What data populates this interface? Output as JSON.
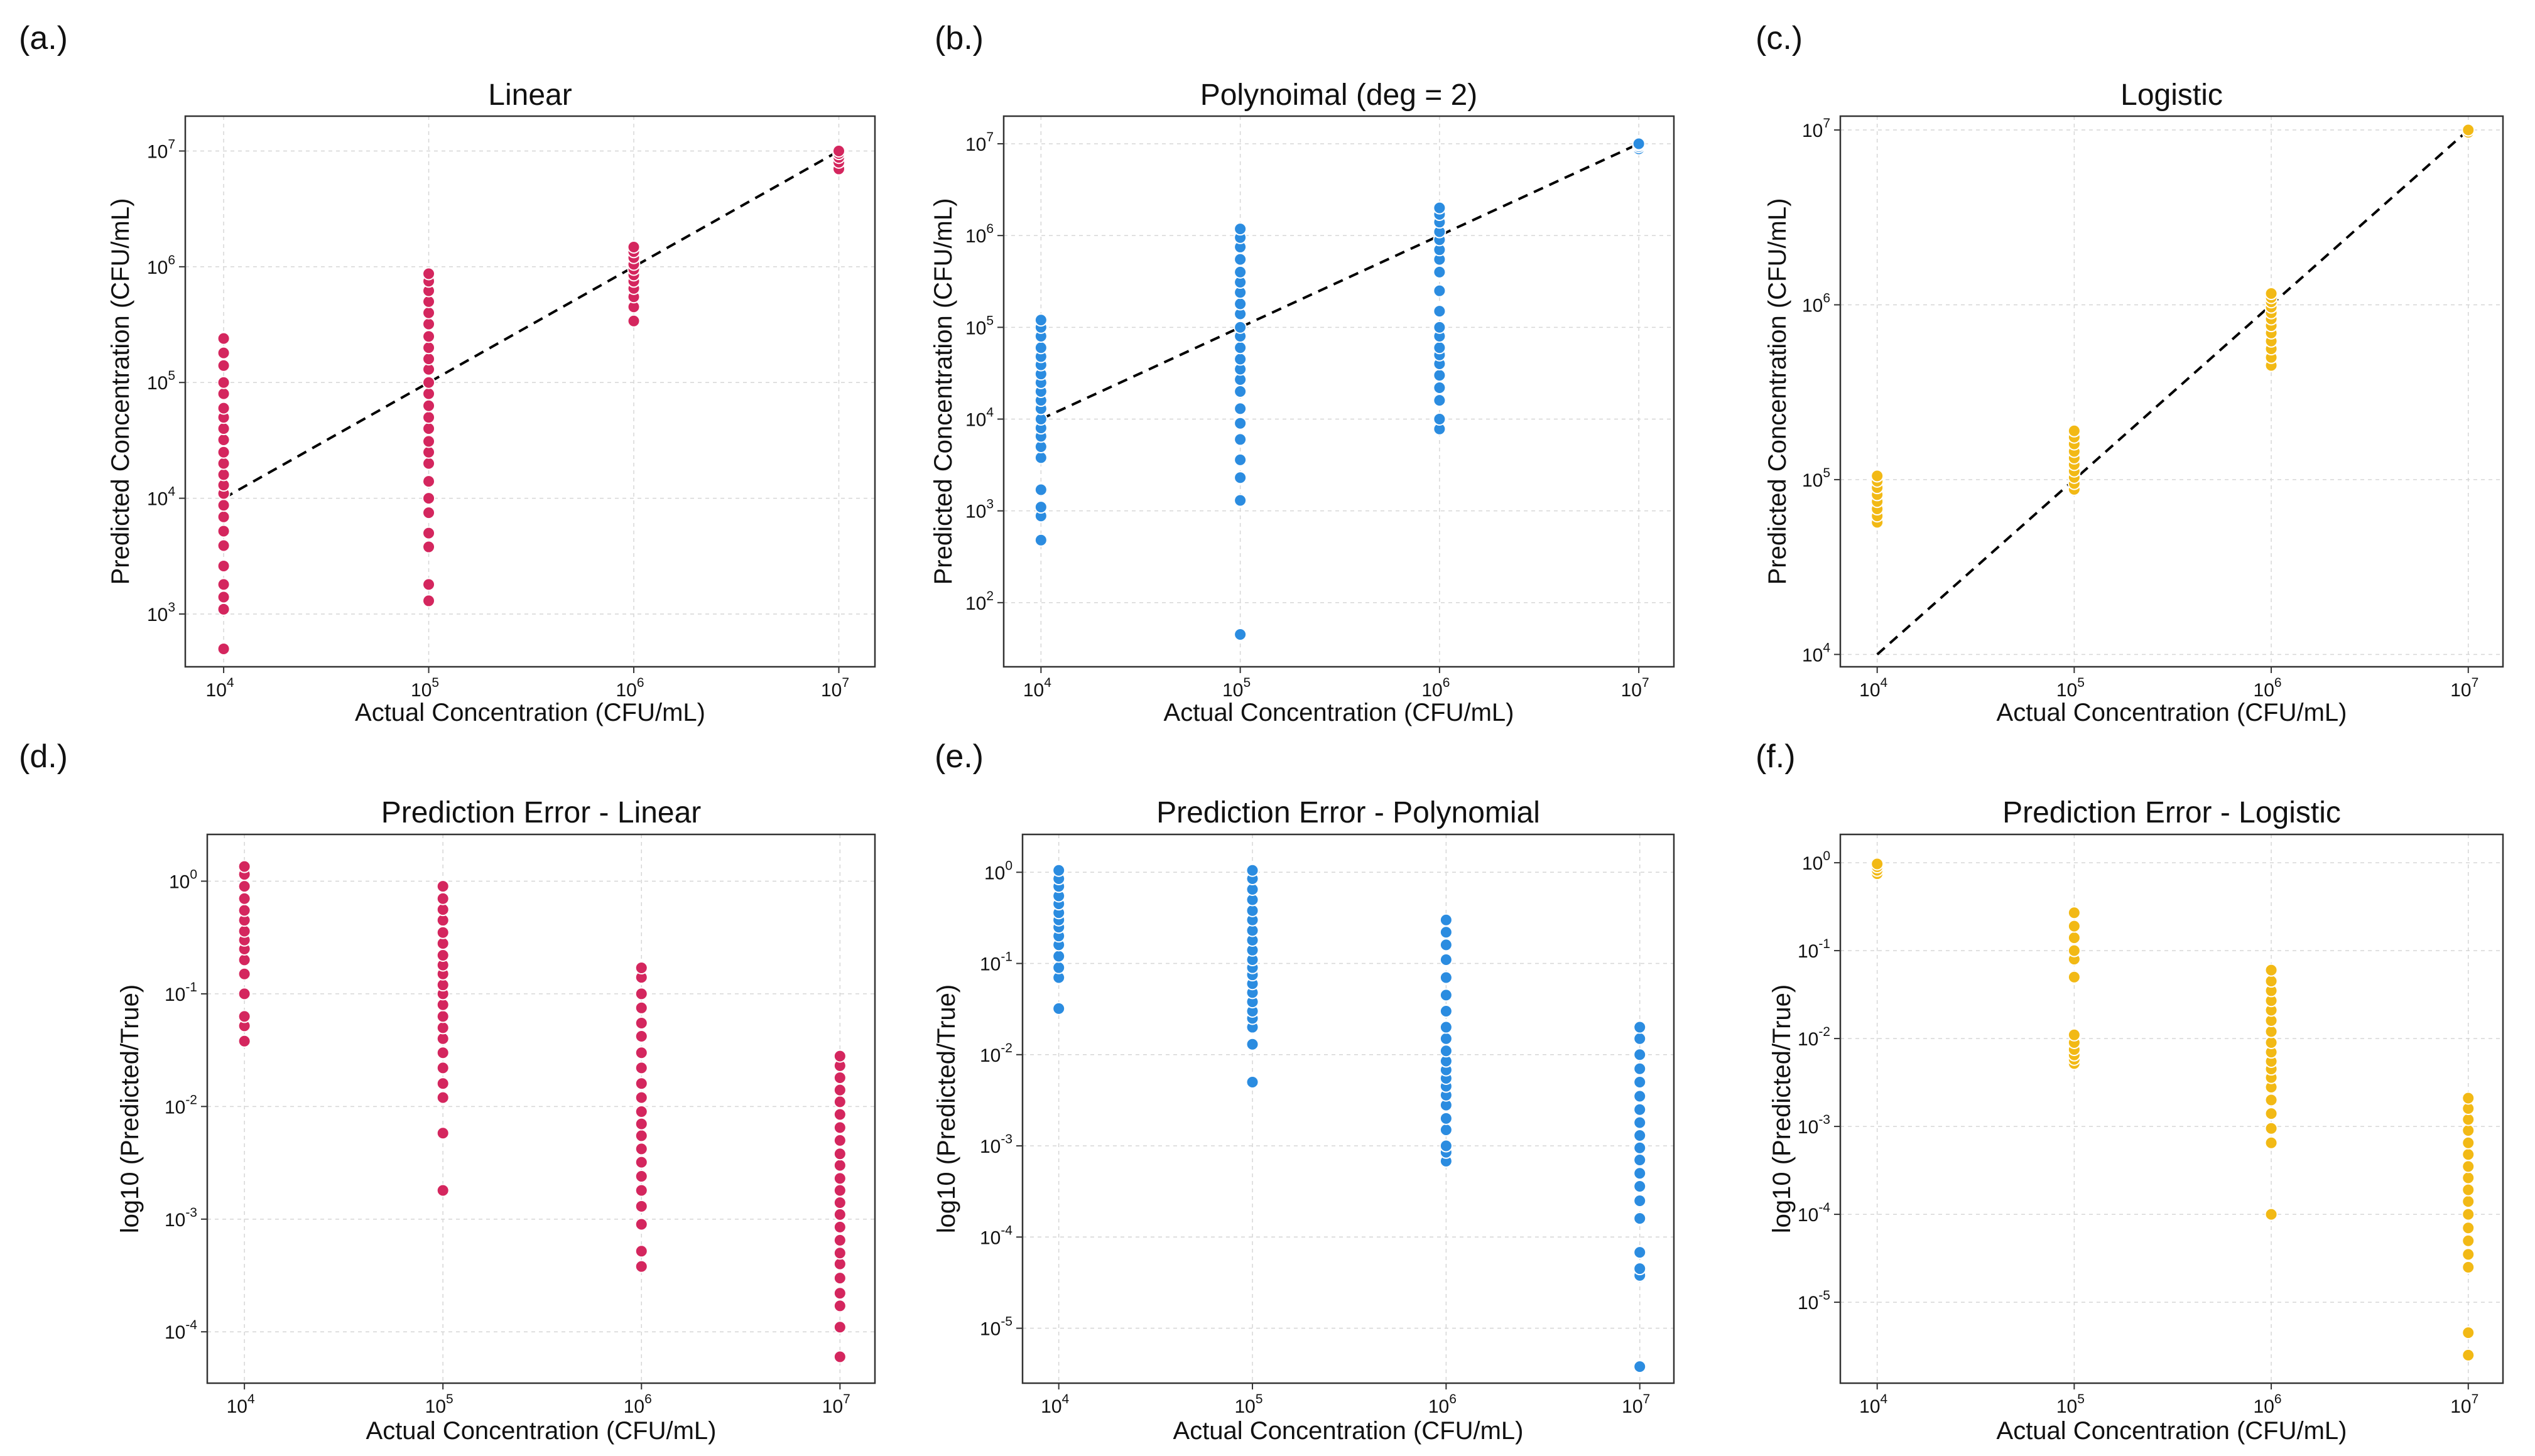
{
  "colors": {
    "linear": "#d4265e",
    "polynomial": "#2b8ce0",
    "logistic": "#f2b915"
  },
  "chart_data": [
    {
      "panel_label": "(a.)",
      "type": "scatter",
      "title": "Linear",
      "xlabel": "Actual Concentration (CFU/mL)",
      "ylabel": "Predicted Concentration (CFU/mL)",
      "xscale": "log",
      "yscale": "log",
      "xlim": [
        6500,
        15000000
      ],
      "ylim": [
        350,
        20000000
      ],
      "xticks": [
        10000,
        100000,
        1000000,
        10000000
      ],
      "yticks": [
        1000,
        10000,
        100000,
        1000000,
        10000000
      ],
      "grid": true,
      "color_key": "linear",
      "reference_line": {
        "style": "dashed",
        "x": [
          10000,
          10000000
        ],
        "y": [
          10000,
          10000000
        ]
      },
      "series": [
        {
          "x": 10000,
          "y": [
            500,
            1100,
            1400,
            1800,
            2600,
            3900,
            5200,
            6900,
            8700,
            11000,
            13000,
            16000,
            20000,
            25000,
            32000,
            40000,
            50000,
            60000,
            80000,
            100000,
            140000,
            180000,
            240000
          ]
        },
        {
          "x": 100000,
          "y": [
            1300,
            1800,
            3800,
            5000,
            7500,
            10000,
            14000,
            20000,
            25000,
            31000,
            40000,
            50000,
            63000,
            80000,
            100000,
            130000,
            160000,
            200000,
            250000,
            320000,
            400000,
            500000,
            620000,
            750000,
            870000
          ]
        },
        {
          "x": 1000000,
          "y": [
            340000,
            450000,
            550000,
            650000,
            750000,
            850000,
            950000,
            1050000,
            1200000,
            1350000,
            1480000
          ]
        },
        {
          "x": 10000000,
          "y": [
            7000000,
            8000000,
            8800000,
            9500000,
            10000000
          ]
        }
      ]
    },
    {
      "panel_label": "(b.)",
      "type": "scatter",
      "title": "Polynoimal (deg = 2)",
      "xlabel": "Actual Concentration (CFU/mL)",
      "ylabel": "Predicted Concentration (CFU/mL)",
      "xscale": "log",
      "yscale": "log",
      "xlim": [
        6500,
        15000000
      ],
      "ylim": [
        20,
        20000000
      ],
      "xticks": [
        10000,
        100000,
        1000000,
        10000000
      ],
      "yticks": [
        100,
        1000,
        10000,
        100000,
        1000000,
        10000000
      ],
      "grid": true,
      "color_key": "polynomial",
      "reference_line": {
        "style": "dashed",
        "x": [
          10000,
          10000000
        ],
        "y": [
          10000,
          10000000
        ]
      },
      "series": [
        {
          "x": 10000,
          "y": [
            480,
            880,
            1100,
            1700,
            3800,
            5000,
            6500,
            8000,
            10000,
            13000,
            16000,
            20000,
            25000,
            31000,
            39000,
            48000,
            60000,
            80000,
            100000,
            120000
          ]
        },
        {
          "x": 100000,
          "y": [
            45,
            1300,
            2300,
            3600,
            6000,
            9000,
            13000,
            20000,
            27000,
            35000,
            45000,
            60000,
            80000,
            100000,
            140000,
            180000,
            240000,
            310000,
            400000,
            550000,
            750000,
            950000,
            1180000
          ]
        },
        {
          "x": 1000000,
          "y": [
            7800,
            10000,
            16000,
            22000,
            30000,
            40000,
            50000,
            60000,
            80000,
            100000,
            150000,
            250000,
            400000,
            550000,
            700000,
            900000,
            1100000,
            1400000,
            1700000,
            2000000
          ]
        },
        {
          "x": 10000000,
          "y": [
            8800000,
            9300000,
            9700000,
            10000000
          ]
        }
      ]
    },
    {
      "panel_label": "(c.)",
      "type": "scatter",
      "title": "Logistic",
      "xlabel": "Actual Concentration (CFU/mL)",
      "ylabel": "Predicted Concentration (CFU/mL)",
      "xscale": "log",
      "yscale": "log",
      "xlim": [
        6500,
        15000000
      ],
      "ylim": [
        8500,
        12000000
      ],
      "xticks": [
        10000,
        100000,
        1000000,
        10000000
      ],
      "yticks": [
        10000,
        100000,
        1000000,
        10000000
      ],
      "grid": true,
      "color_key": "logistic",
      "reference_line": {
        "style": "dashed",
        "x": [
          10000,
          10000000
        ],
        "y": [
          10000,
          10000000
        ]
      },
      "series": [
        {
          "x": 10000,
          "y": [
            57000,
            62000,
            68000,
            75000,
            82000,
            90000,
            98000,
            105000
          ]
        },
        {
          "x": 100000,
          "y": [
            88000,
            95000,
            103000,
            112000,
            122000,
            133000,
            145000,
            160000,
            175000,
            190000
          ]
        },
        {
          "x": 1000000,
          "y": [
            450000,
            500000,
            560000,
            620000,
            690000,
            760000,
            830000,
            900000,
            970000,
            1040000,
            1100000,
            1160000
          ]
        },
        {
          "x": 10000000,
          "y": [
            9700000,
            10000000
          ]
        }
      ]
    },
    {
      "panel_label": "(d.)",
      "type": "scatter",
      "title": "Prediction Error - Linear",
      "xlabel": "Actual Concentration (CFU/mL)",
      "ylabel": "log10 (Predicted/True)",
      "xscale": "log",
      "yscale": "log",
      "xlim": [
        6500,
        15000000
      ],
      "ylim": [
        3.5e-05,
        2.6
      ],
      "xticks": [
        10000,
        100000,
        1000000,
        10000000
      ],
      "yticks": [
        0.0001,
        0.001,
        0.01,
        0.1,
        1
      ],
      "grid": true,
      "color_key": "linear",
      "series": [
        {
          "x": 10000,
          "y": [
            0.038,
            0.052,
            0.063,
            0.1,
            0.15,
            0.2,
            0.25,
            0.3,
            0.36,
            0.45,
            0.55,
            0.7,
            0.9,
            1.15,
            1.35
          ]
        },
        {
          "x": 100000,
          "y": [
            0.0018,
            0.0058,
            0.012,
            0.016,
            0.022,
            0.03,
            0.04,
            0.05,
            0.063,
            0.08,
            0.1,
            0.12,
            0.15,
            0.18,
            0.22,
            0.28,
            0.35,
            0.45,
            0.56,
            0.7,
            0.9
          ]
        },
        {
          "x": 1000000,
          "y": [
            0.00038,
            0.00052,
            0.0009,
            0.0013,
            0.0018,
            0.0024,
            0.0032,
            0.0042,
            0.0055,
            0.007,
            0.009,
            0.012,
            0.016,
            0.022,
            0.03,
            0.042,
            0.055,
            0.075,
            0.1,
            0.14,
            0.17
          ]
        },
        {
          "x": 10000000,
          "y": [
            6e-05,
            0.00011,
            0.00017,
            0.00022,
            0.0003,
            0.0004,
            0.0005,
            0.00065,
            0.00085,
            0.0011,
            0.0014,
            0.0018,
            0.0023,
            0.003,
            0.0038,
            0.005,
            0.0065,
            0.0085,
            0.011,
            0.014,
            0.018,
            0.023,
            0.028
          ]
        }
      ]
    },
    {
      "panel_label": "(e.)",
      "type": "scatter",
      "title": "Prediction Error - Polynomial",
      "xlabel": "Actual Concentration (CFU/mL)",
      "ylabel": "log10 (Predicted/True)",
      "xscale": "log",
      "yscale": "log",
      "xlim": [
        6500,
        15000000
      ],
      "ylim": [
        2.5e-06,
        2.6
      ],
      "xticks": [
        10000,
        100000,
        1000000,
        10000000
      ],
      "yticks": [
        1e-05,
        0.0001,
        0.001,
        0.01,
        0.1,
        1
      ],
      "grid": true,
      "color_key": "polynomial",
      "series": [
        {
          "x": 10000,
          "y": [
            0.032,
            0.07,
            0.09,
            0.12,
            0.16,
            0.2,
            0.25,
            0.3,
            0.36,
            0.45,
            0.55,
            0.7,
            0.85,
            1.05
          ]
        },
        {
          "x": 100000,
          "y": [
            0.005,
            0.013,
            0.02,
            0.025,
            0.03,
            0.038,
            0.048,
            0.06,
            0.075,
            0.09,
            0.11,
            0.14,
            0.18,
            0.23,
            0.3,
            0.38,
            0.5,
            0.65,
            0.85,
            1.05
          ]
        },
        {
          "x": 1000000,
          "y": [
            0.00068,
            0.00085,
            0.001,
            0.0015,
            0.002,
            0.0028,
            0.0036,
            0.0045,
            0.0055,
            0.0068,
            0.0085,
            0.011,
            0.015,
            0.02,
            0.03,
            0.045,
            0.07,
            0.11,
            0.16,
            0.22,
            0.3
          ]
        },
        {
          "x": 10000000,
          "y": [
            3.8e-06,
            3.8e-05,
            4.5e-05,
            6.8e-05,
            0.00016,
            0.00025,
            0.00036,
            0.0005,
            0.0007,
            0.00095,
            0.0013,
            0.0018,
            0.0025,
            0.0035,
            0.005,
            0.007,
            0.01,
            0.015,
            0.02
          ]
        }
      ]
    },
    {
      "panel_label": "(f.)",
      "type": "scatter",
      "title": "Prediction Error - Logistic",
      "xlabel": "Actual Concentration (CFU/mL)",
      "ylabel": "log10 (Predicted/True)",
      "xscale": "log",
      "yscale": "log",
      "xlim": [
        6500,
        15000000
      ],
      "ylim": [
        1.2e-06,
        2.1
      ],
      "xticks": [
        10000,
        100000,
        1000000,
        10000000
      ],
      "yticks": [
        1e-05,
        0.0001,
        0.001,
        0.01,
        0.1,
        1
      ],
      "grid": true,
      "color_key": "logistic",
      "series": [
        {
          "x": 10000,
          "y": [
            0.75,
            0.82,
            0.9,
            0.97
          ]
        },
        {
          "x": 100000,
          "y": [
            0.0052,
            0.0058,
            0.0065,
            0.0075,
            0.009,
            0.011,
            0.05,
            0.08,
            0.1,
            0.14,
            0.19,
            0.27
          ]
        },
        {
          "x": 1000000,
          "y": [
            0.0001,
            0.00065,
            0.00095,
            0.0014,
            0.002,
            0.0028,
            0.0036,
            0.0045,
            0.0055,
            0.007,
            0.009,
            0.012,
            0.016,
            0.021,
            0.027,
            0.035,
            0.045,
            0.06
          ]
        },
        {
          "x": 10000000,
          "y": [
            2.5e-06,
            4.5e-06,
            2.5e-05,
            3.5e-05,
            5e-05,
            7e-05,
            0.0001,
            0.00014,
            0.00019,
            0.00026,
            0.00035,
            0.00048,
            0.00065,
            0.0009,
            0.0012,
            0.0016,
            0.0021
          ]
        }
      ]
    }
  ]
}
